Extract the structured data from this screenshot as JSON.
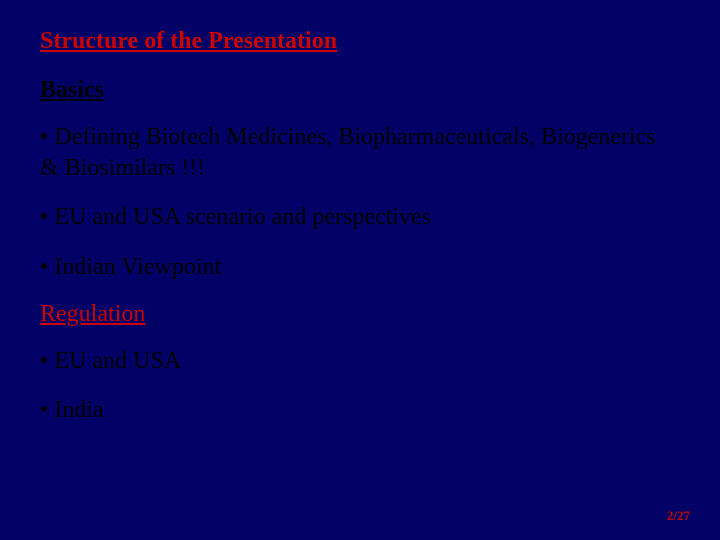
{
  "colors": {
    "background": "#000066",
    "title": "#cc0000",
    "text": "#000000",
    "redSection": "#cc0000",
    "pageNumber": "#cc0000"
  },
  "fontsize": {
    "title": 24,
    "body": 24,
    "pageNumber": 13
  },
  "title": "Structure of the Presentation",
  "section1": {
    "heading": "Basics",
    "bullets": [
      "•  Defining Biotech Medicines, Biopharmaceuticals, Biogenerics & Biosimilars !!!",
      "• EU and USA scenario and perspectives",
      "• Indian Viewpoint"
    ]
  },
  "section2": {
    "heading": "Regulation",
    "bullets": [
      "• EU and USA",
      "• India"
    ]
  },
  "pageNumber": "2/27"
}
